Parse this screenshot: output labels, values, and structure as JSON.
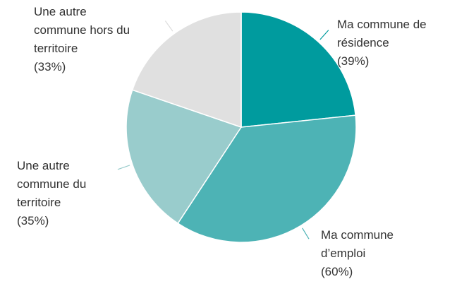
{
  "chart_data": {
    "type": "pie",
    "categories": [
      "Ma commune de\nrésidence",
      "Ma commune\nd’emploi",
      "Une autre\ncommune du\nterritoire",
      "Une autre\ncommune hors du\nterritoire"
    ],
    "values": [
      39,
      60,
      35,
      33
    ],
    "value_labels": [
      "(39%)",
      "(60%)",
      "(35%)",
      "(33%)"
    ],
    "colors": [
      "#009b9e",
      "#4db3b5",
      "#99cccc",
      "#e0e0e0"
    ]
  }
}
